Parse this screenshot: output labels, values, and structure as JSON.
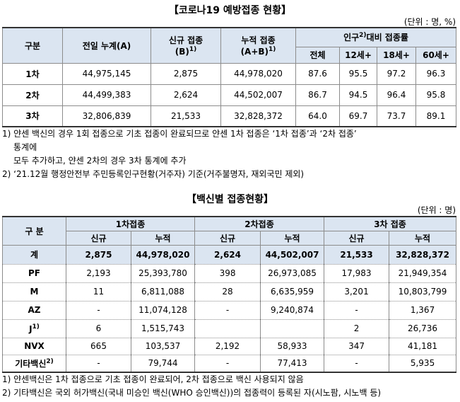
{
  "section1": {
    "title": "【코로나19 예방접종 현황】",
    "unit": "(단위 : 명, %)",
    "header": {
      "category": "구분",
      "prev_total": "전일 누계(A)",
      "new": {
        "line1": "신규 접종",
        "line2": "(B)",
        "sup": "1)"
      },
      "cumulative": {
        "line1": "누적 접종",
        "line2": "(A+B)",
        "sup": "1)"
      },
      "rate": {
        "text": "인구",
        "sup": "2)",
        "rest": "대비 접종률"
      },
      "rate_columns": [
        "전체",
        "12세+",
        "18세+",
        "60세+"
      ]
    },
    "rows": [
      {
        "label": "1차",
        "cells": [
          "44,975,145",
          "2,875",
          "44,978,020",
          "87.6",
          "95.5",
          "97.2",
          "96.3"
        ]
      },
      {
        "label": "2차",
        "cells": [
          "44,499,383",
          "2,624",
          "44,502,007",
          "86.7",
          "94.5",
          "96.4",
          "95.8"
        ]
      },
      {
        "label": "3차",
        "cells": [
          "32,806,839",
          "21,533",
          "32,828,372",
          "64.0",
          "69.7",
          "73.7",
          "89.1"
        ]
      }
    ],
    "notes": [
      "1) 얀센 백신의 경우 1회 접종으로 기초 접종이 완료되므로 얀센 1차 접종은 ‘1차 접종’과 ‘2차 접종’",
      "통계에",
      "모두 추가하고, 얀센 2차의 경우 3차 통계에 추가",
      "2) ‘21.12월 행정안전부 주민등록인구현황(거주자) 기준(거주불명자, 재외국민 제외)"
    ]
  },
  "section2": {
    "title": "【백신별 접종현황】",
    "unit": "(단위 : 명)",
    "header": {
      "category": "구 분",
      "groups": [
        "1차접종",
        "2차접종",
        "3차 접종"
      ],
      "sub": [
        "신규",
        "누적"
      ]
    },
    "rows": [
      {
        "label": "계",
        "cells": [
          "2,875",
          "44,978,020",
          "2,624",
          "44,502,007",
          "21,533",
          "32,828,372"
        ]
      },
      {
        "label": "PF",
        "cells": [
          "2,193",
          "25,393,780",
          "398",
          "26,973,085",
          "17,983",
          "21,949,354"
        ]
      },
      {
        "label": "M",
        "cells": [
          "11",
          "6,811,088",
          "28",
          "6,635,959",
          "3,201",
          "10,803,799"
        ]
      },
      {
        "label": "AZ",
        "cells": [
          "-",
          "11,074,128",
          "-",
          "9,240,874",
          "-",
          "1,367"
        ]
      },
      {
        "label": "J",
        "sup": "1)",
        "cells": [
          "6",
          "1,515,743",
          null,
          null,
          "2",
          "26,736"
        ]
      },
      {
        "label": "NVX",
        "cells": [
          "665",
          "103,537",
          "2,192",
          "58,933",
          "347",
          "41,181"
        ]
      },
      {
        "label": "기타백신",
        "sup": "2)",
        "cells": [
          "-",
          "79,744",
          "-",
          "77,413",
          "-",
          "5,935"
        ]
      }
    ],
    "notes": [
      "1) 얀센백신은 1차 접종으로 기초 접종이 완료되어, 2차 접종으로 백신 사용되지 않음",
      "2) 기타백신은 국외 허가백신(국내 미승인 백신(WHO 승인백신))의 접종력이 등록된 자(시노팜, 시노백 등)"
    ]
  }
}
